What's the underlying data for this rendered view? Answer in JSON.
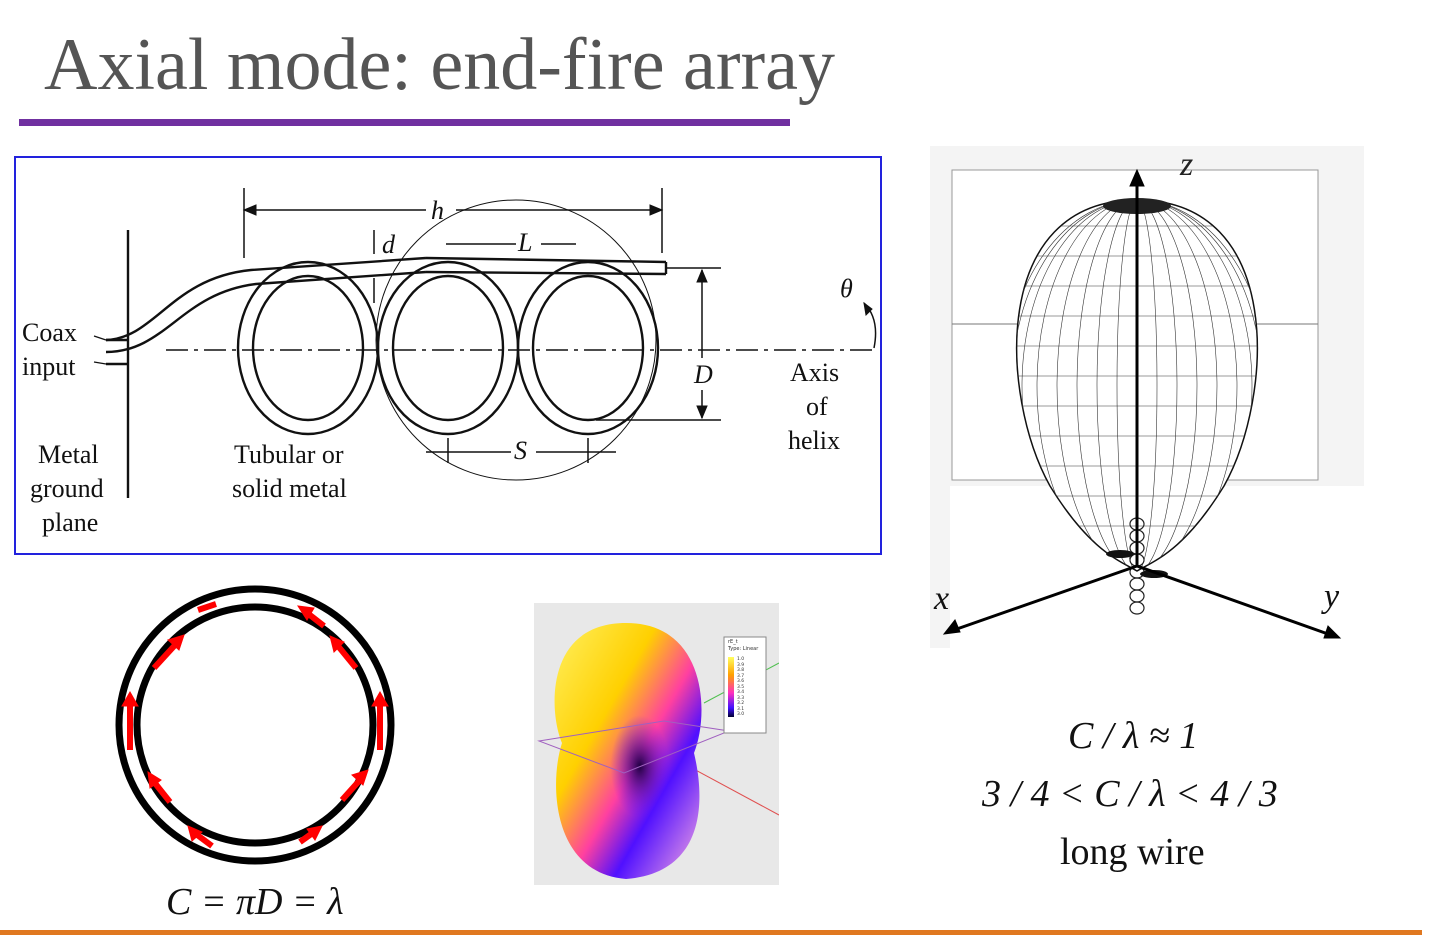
{
  "slide": {
    "title": "Axial mode: end-fire array",
    "accent_color": "#7030a0",
    "footer_color": "#e07820"
  },
  "helix_diagram": {
    "labels": {
      "h": "h",
      "d": "d",
      "L": "L",
      "theta": "θ",
      "D": "D",
      "S": "S",
      "coax_line1": "Coax",
      "coax_line2": "input",
      "metal_line1": "Metal",
      "metal_line2": "ground",
      "metal_line3": "plane",
      "tubular_line1": "Tubular or",
      "tubular_line2": "solid metal",
      "axis_line1": "Axis",
      "axis_line2": "of",
      "axis_line3": "helix"
    },
    "frame_color": "#2222dd"
  },
  "radiation_pattern": {
    "axis_z": "z",
    "axis_x": "x",
    "axis_y": "y"
  },
  "ring": {
    "formula": "C = πD = λ",
    "current_color": "#ff0000"
  },
  "simulation": {
    "legend_title": "rE_t",
    "legend_type": "Type: Linear",
    "legend_values": [
      "1.0",
      "3.9",
      "3.8",
      "3.7",
      "3.6",
      "3.5",
      "3.4",
      "3.3",
      "3.2",
      "3.1",
      "3.0"
    ]
  },
  "conditions": {
    "line1": "C / λ ≈ 1",
    "line2": "3 / 4  <  C / λ < 4 / 3",
    "line3": "long wire"
  }
}
